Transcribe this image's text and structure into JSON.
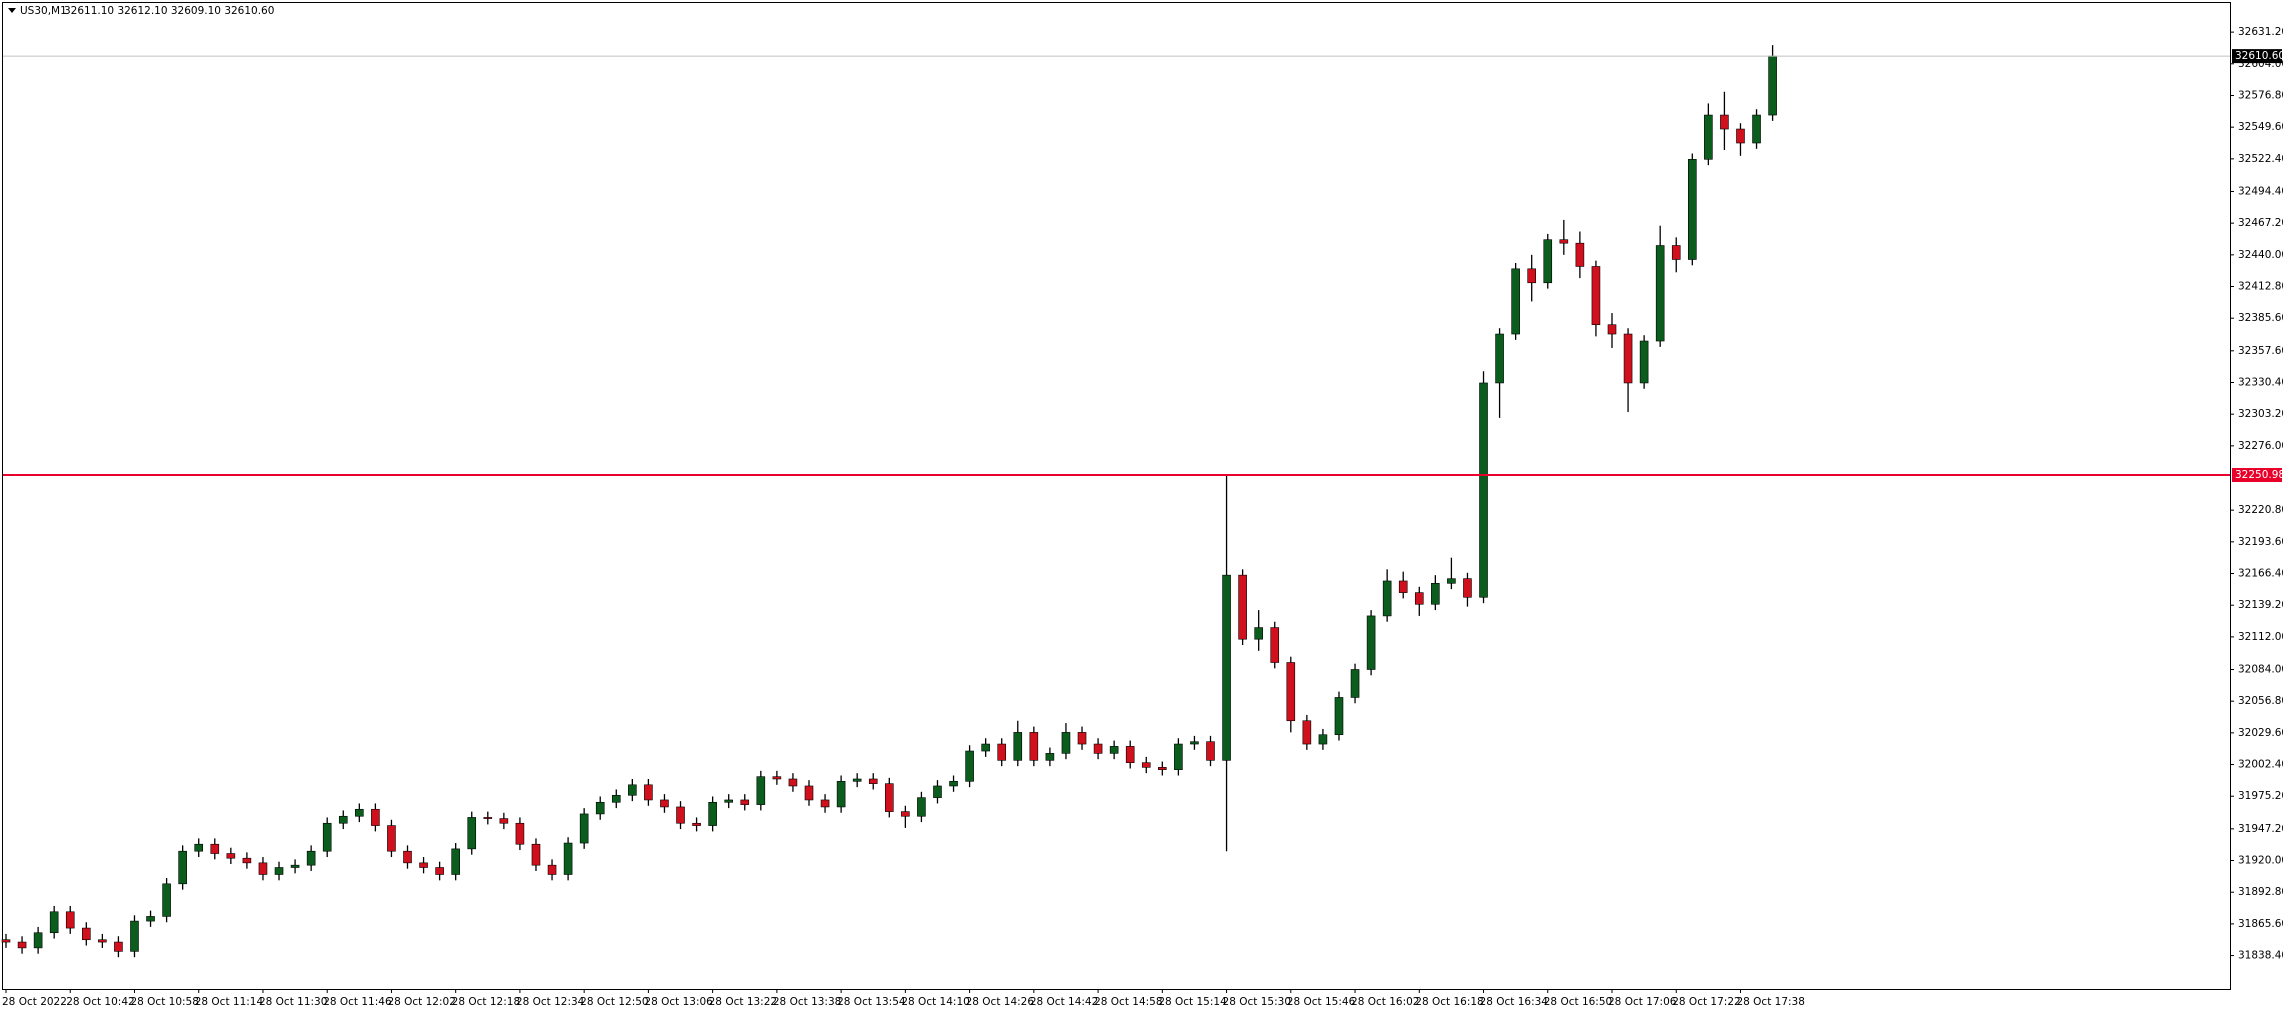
{
  "header": {
    "symbol": "US30,M1",
    "quote": "32611.10 32612.10 32609.10 32610.60"
  },
  "chart_data": {
    "type": "candlestick",
    "categories": [
      "28 Oct 2022",
      null,
      null,
      null,
      "28 Oct 10:42",
      null,
      null,
      null,
      "28 Oct 10:58",
      null,
      null,
      null,
      "28 Oct 11:14",
      null,
      null,
      null,
      "28 Oct 11:30",
      null,
      null,
      null,
      "28 Oct 11:46",
      null,
      null,
      null,
      "28 Oct 12:02",
      null,
      null,
      null,
      "28 Oct 12:18",
      null,
      null,
      null,
      "28 Oct 12:34",
      null,
      null,
      null,
      "28 Oct 12:50",
      null,
      null,
      null,
      "28 Oct 13:06",
      null,
      null,
      null,
      "28 Oct 13:22",
      null,
      null,
      null,
      "28 Oct 13:38",
      null,
      null,
      null,
      "28 Oct 13:54",
      null,
      null,
      null,
      "28 Oct 14:10",
      null,
      null,
      null,
      "28 Oct 14:26",
      null,
      null,
      null,
      "28 Oct 14:42",
      null,
      null,
      null,
      "28 Oct 14:58",
      null,
      null,
      null,
      "28 Oct 15:14",
      null,
      null,
      null,
      "28 Oct 15:30",
      null,
      null,
      null,
      "28 Oct 15:46",
      null,
      null,
      null,
      "28 Oct 16:02",
      null,
      null,
      null,
      "28 Oct 16:18",
      null,
      null,
      null,
      "28 Oct 16:34",
      null,
      null,
      null,
      "28 Oct 16:50",
      null,
      null,
      null,
      "28 Oct 17:06",
      null,
      null,
      null,
      "28 Oct 17:22",
      null,
      null,
      null,
      "28 Oct 17:38",
      null,
      null
    ],
    "open": [
      31852,
      31850,
      31845,
      31858,
      31876,
      31862,
      31852,
      31850,
      31842,
      31868,
      31872,
      31900,
      31928,
      31934,
      31926,
      31922,
      31918,
      31908,
      31914,
      31916,
      31928,
      31952,
      31958,
      31964,
      31950,
      31928,
      31918,
      31914,
      31908,
      31930,
      31957,
      31956,
      31952,
      31934,
      31916,
      31908,
      31935,
      31960,
      31970,
      31976,
      31985,
      31972,
      31966,
      31952,
      31950,
      31970,
      31972,
      31968,
      31992,
      31990,
      31984,
      31972,
      31966,
      31988,
      31990,
      31986,
      31962,
      31958,
      31974,
      31984,
      31988,
      32014,
      32020,
      32006,
      32030,
      32006,
      32012,
      32030,
      32020,
      32012,
      32018,
      32004,
      32000,
      31998,
      32020,
      32022,
      32006,
      32165,
      32110,
      32120,
      32090,
      32040,
      32020,
      32028,
      32060,
      32084,
      32130,
      32160,
      32150,
      32140,
      32158,
      32162,
      32146,
      32330,
      32372,
      32428,
      32416,
      32453,
      32450,
      32430,
      32380,
      32372,
      32330,
      32366,
      32448,
      32436,
      32522,
      32560,
      32548,
      32536,
      32560
    ],
    "high": [
      31857,
      31855,
      31863,
      31881,
      31881,
      31867,
      31857,
      31855,
      31873,
      31877,
      31905,
      31933,
      31939,
      31939,
      31931,
      31927,
      31923,
      31919,
      31921,
      31933,
      31957,
      31963,
      31969,
      31969,
      31955,
      31933,
      31923,
      31919,
      31935,
      31962,
      31962,
      31961,
      31957,
      31939,
      31921,
      31940,
      31965,
      31975,
      31981,
      31990,
      31990,
      31977,
      31971,
      31957,
      31975,
      31977,
      31977,
      31997,
      31997,
      31995,
      31989,
      31977,
      31993,
      31995,
      31995,
      31991,
      31967,
      31979,
      31989,
      31993,
      32019,
      32025,
      32025,
      32040,
      32035,
      32017,
      32038,
      32035,
      32025,
      32023,
      32023,
      32009,
      32005,
      32025,
      32027,
      32027,
      32250.98,
      32170,
      32135,
      32125,
      32095,
      32045,
      32033,
      32065,
      32089,
      32135,
      32170,
      32168,
      32155,
      32165,
      32180,
      32167,
      32340,
      32377,
      32433,
      32440,
      32458,
      32470,
      32460,
      32435,
      32390,
      32377,
      32371,
      32465,
      32455,
      32527,
      32570,
      32580,
      32553,
      32565,
      32620
    ],
    "low": [
      31845,
      31840,
      31840,
      31853,
      31857,
      31847,
      31845,
      31837,
      31837,
      31863,
      31867,
      31895,
      31923,
      31921,
      31917,
      31913,
      31903,
      31903,
      31909,
      31911,
      31923,
      31947,
      31953,
      31945,
      31923,
      31913,
      31909,
      31903,
      31903,
      31925,
      31951,
      31947,
      31929,
      31911,
      31903,
      31903,
      31930,
      31955,
      31965,
      31971,
      31967,
      31961,
      31947,
      31945,
      31945,
      31965,
      31963,
      31963,
      31985,
      31979,
      31967,
      31961,
      31961,
      31983,
      31981,
      31957,
      31948,
      31953,
      31969,
      31979,
      31983,
      32009,
      32001,
      32001,
      32001,
      32001,
      32007,
      32015,
      32007,
      32007,
      31999,
      31995,
      31993,
      31993,
      32015,
      32001,
      31928,
      32105,
      32100,
      32085,
      32030,
      32015,
      32015,
      32023,
      32055,
      32079,
      32125,
      32145,
      32130,
      32135,
      32153,
      32138,
      32141,
      32300,
      32367,
      32400,
      32411,
      32440,
      32420,
      32370,
      32360,
      32305,
      32325,
      32361,
      32425,
      32431,
      32517,
      32530,
      32525,
      32531,
      32555
    ],
    "close": [
      31850,
      31845,
      31858,
      31876,
      31862,
      31852,
      31850,
      31842,
      31868,
      31872,
      31900,
      31928,
      31934,
      31926,
      31922,
      31918,
      31908,
      31914,
      31916,
      31928,
      31952,
      31958,
      31964,
      31950,
      31928,
      31918,
      31914,
      31908,
      31930,
      31957,
      31956,
      31952,
      31934,
      31916,
      31908,
      31935,
      31960,
      31970,
      31976,
      31985,
      31972,
      31966,
      31952,
      31950,
      31970,
      31972,
      31968,
      31992,
      31990,
      31984,
      31972,
      31966,
      31988,
      31990,
      31986,
      31962,
      31958,
      31974,
      31984,
      31988,
      32014,
      32020,
      32006,
      32030,
      32006,
      32012,
      32030,
      32020,
      32012,
      32018,
      32004,
      32000,
      31998,
      32020,
      32022,
      32006,
      32165,
      32110,
      32120,
      32090,
      32040,
      32020,
      32028,
      32060,
      32084,
      32130,
      32160,
      32150,
      32140,
      32158,
      32162,
      32146,
      32330,
      32372,
      32428,
      32416,
      32453,
      32450,
      32430,
      32380,
      32372,
      32330,
      32366,
      32448,
      32436,
      32522,
      32560,
      32548,
      32536,
      32560,
      32610.6
    ],
    "up_color": "#0b5d1e",
    "down_color": "#d0101c",
    "wick_color": "#000000",
    "ylim": [
      31809.7,
      32656.2
    ],
    "yticks": [
      {
        "value": 31838.4,
        "label": "31838.40"
      },
      {
        "value": 31865.6,
        "label": "31865.60"
      },
      {
        "value": 31892.8,
        "label": "31892.80"
      },
      {
        "value": 31920,
        "label": "31920.00"
      },
      {
        "value": 31947.2,
        "label": "31947.20"
      },
      {
        "value": 31975.2,
        "label": "31975.20"
      },
      {
        "value": 32002.4,
        "label": "32002.40"
      },
      {
        "value": 32029.6,
        "label": "32029.60"
      },
      {
        "value": 32056.8,
        "label": "32056.80"
      },
      {
        "value": 32084,
        "label": "32084.00"
      },
      {
        "value": 32112,
        "label": "32112.00"
      },
      {
        "value": 32139.2,
        "label": "32139.20"
      },
      {
        "value": 32166.4,
        "label": "32166.40"
      },
      {
        "value": 32193.6,
        "label": "32193.60"
      },
      {
        "value": 32220.8,
        "label": "32220.80"
      },
      {
        "value": 32276,
        "label": "32276.00"
      },
      {
        "value": 32303.2,
        "label": "32303.20"
      },
      {
        "value": 32330.4,
        "label": "32330.40"
      },
      {
        "value": 32357.6,
        "label": "32357.60"
      },
      {
        "value": 32385.6,
        "label": "32385.60"
      },
      {
        "value": 32412.8,
        "label": "32412.80"
      },
      {
        "value": 32440,
        "label": "32440.00"
      },
      {
        "value": 32467.2,
        "label": "32467.20"
      },
      {
        "value": 32494.4,
        "label": "32494.40"
      },
      {
        "value": 32522.4,
        "label": "32522.40"
      },
      {
        "value": 32549.6,
        "label": "32549.60"
      },
      {
        "value": 32576.8,
        "label": "32576.80"
      },
      {
        "value": 32604,
        "label": "32604.00"
      },
      {
        "value": 32631.2,
        "label": "32631.20"
      }
    ],
    "price_line": {
      "value": 32610.6,
      "label": "32610.60",
      "color": "#c0c0c0"
    },
    "level_line": {
      "value": 32250.98,
      "label": "32250.98",
      "color": "#e8002a"
    }
  }
}
